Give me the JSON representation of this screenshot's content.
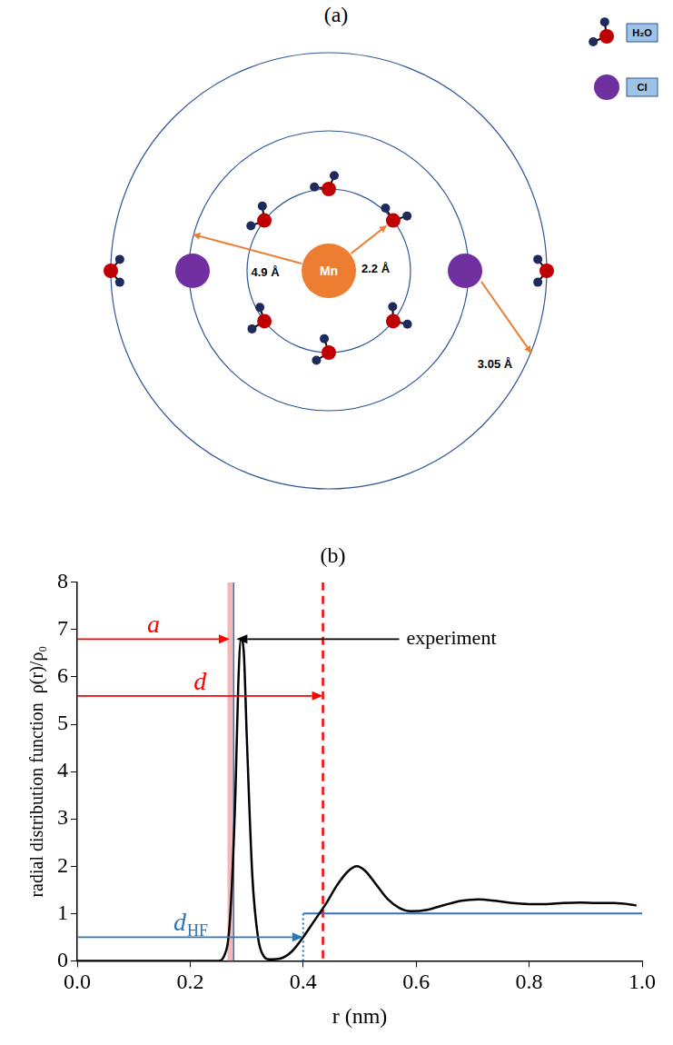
{
  "diagram": {
    "title": "(a)",
    "center": "Mn",
    "legend": [
      {
        "label": "H₂O"
      },
      {
        "label": "Cl"
      }
    ],
    "distances": {
      "inner": "2.2 Å",
      "middle": "4.9 Å",
      "shell_gap": "3.05 Å"
    }
  },
  "chart_data": {
    "type": "line",
    "title": "(b)",
    "x_label": "r (nm)",
    "y_label": "radial distribution function  ρ(r)/ρ₀",
    "x": [
      0,
      0.1,
      0.2,
      0.25,
      0.26,
      0.27,
      0.28,
      0.285,
      0.29,
      0.295,
      0.3,
      0.31,
      0.32,
      0.33,
      0.34,
      0.36,
      0.38,
      0.4,
      0.42,
      0.44,
      0.46,
      0.48,
      0.495,
      0.51,
      0.53,
      0.55,
      0.57,
      0.59,
      0.62,
      0.65,
      0.68,
      0.71,
      0.74,
      0.77,
      0.8,
      0.83,
      0.86,
      0.89,
      0.92,
      0.95,
      0.98,
      0.99
    ],
    "series": [
      {
        "color": "#000000",
        "values": [
          0,
          0,
          0,
          0,
          0.1,
          0.8,
          3.5,
          5.8,
          6.8,
          6.5,
          4.8,
          1.8,
          0.5,
          0.1,
          0.03,
          0.05,
          0.2,
          0.5,
          0.85,
          1.2,
          1.6,
          1.9,
          2.0,
          1.9,
          1.6,
          1.3,
          1.12,
          1.05,
          1.08,
          1.18,
          1.27,
          1.3,
          1.27,
          1.22,
          1.2,
          1.2,
          1.22,
          1.23,
          1.22,
          1.22,
          1.19,
          1.17
        ]
      }
    ],
    "xlim": [
      0,
      1
    ],
    "xticks": [
      {
        "value": 0,
        "label": "0.0"
      },
      0.2,
      0.4,
      0.6,
      0.8,
      {
        "value": 1,
        "label": "1.0"
      }
    ],
    "ylim": [
      0,
      8
    ],
    "yticks": [
      0,
      1,
      2,
      3,
      4,
      5,
      6,
      7,
      8
    ],
    "grid": false,
    "annotations": [
      {
        "type": "band",
        "x": [
          0.266,
          0.276
        ],
        "color": "#f4b6b6"
      },
      {
        "type": "vline",
        "x": 0.277,
        "color": "#2e75b6",
        "line_style": "solid"
      },
      {
        "type": "vline",
        "x": 0.435,
        "color": "#ff0000",
        "line_style": "dashed"
      },
      {
        "type": "step",
        "x": 0.4,
        "y": 1,
        "color": "#2e75b6"
      },
      {
        "type": "arrow",
        "label": "a",
        "from": [
          0,
          6.8
        ],
        "to": [
          0.27,
          6.8
        ],
        "color": "#ff0000"
      },
      {
        "type": "arrow",
        "label": "d",
        "from": [
          0,
          5.6
        ],
        "to": [
          0.435,
          5.6
        ],
        "color": "#ff0000"
      },
      {
        "type": "arrow",
        "label": "d",
        "subscript": "HF",
        "from": [
          0,
          0.5
        ],
        "to": [
          0.4,
          0.5
        ],
        "color": "#2e75b6"
      },
      {
        "type": "arrow",
        "label": "experiment",
        "from": [
          0.57,
          6.8
        ],
        "to": [
          0.282,
          6.8
        ],
        "color": "#000000"
      }
    ]
  }
}
